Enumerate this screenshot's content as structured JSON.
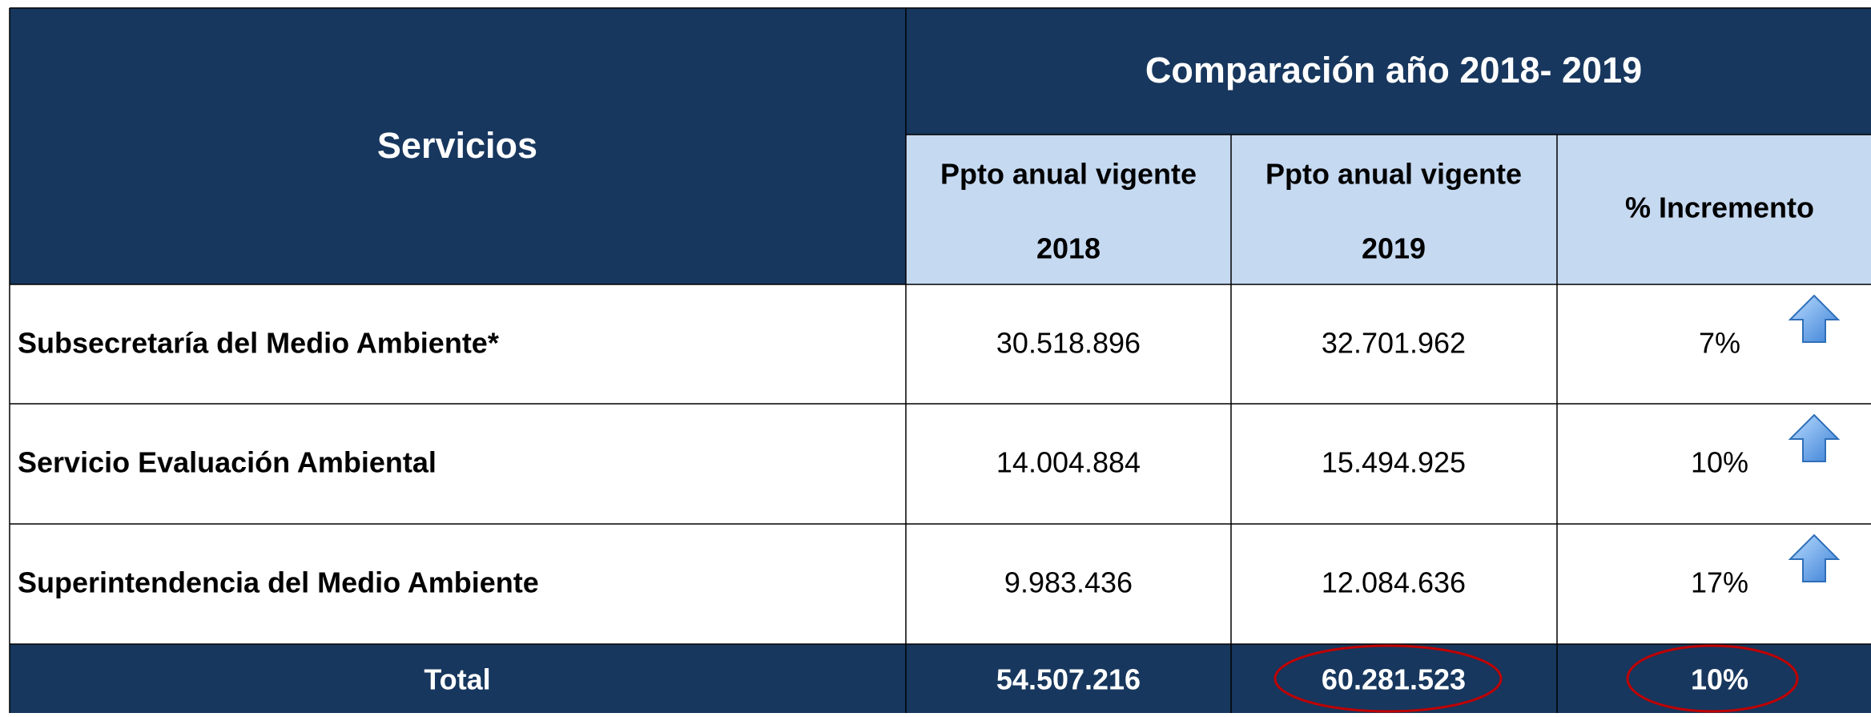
{
  "header": {
    "services": "Servicios",
    "comparison": "Comparación  año  2018- 2019"
  },
  "columns": [
    {
      "line1": "Ppto anual vigente",
      "line2": "2018"
    },
    {
      "line1": "Ppto anual vigente",
      "line2": "2019"
    },
    {
      "line1": "% Incremento"
    }
  ],
  "rows": [
    {
      "name": "Subsecretaría del Medio Ambiente*",
      "v2018": "30.518.896",
      "v2019": "32.701.962",
      "pct": "7%"
    },
    {
      "name": "Servicio Evaluación Ambiental",
      "v2018": "14.004.884",
      "v2019": "15.494.925",
      "pct": "10%"
    },
    {
      "name": "Superintendencia del Medio Ambiente",
      "v2018": "9.983.436",
      "v2019": "12.084.636",
      "pct": "17%"
    }
  ],
  "total": {
    "name": "Total",
    "v2018": "54.507.216",
    "v2019": "60.281.523",
    "pct": "10%"
  }
}
